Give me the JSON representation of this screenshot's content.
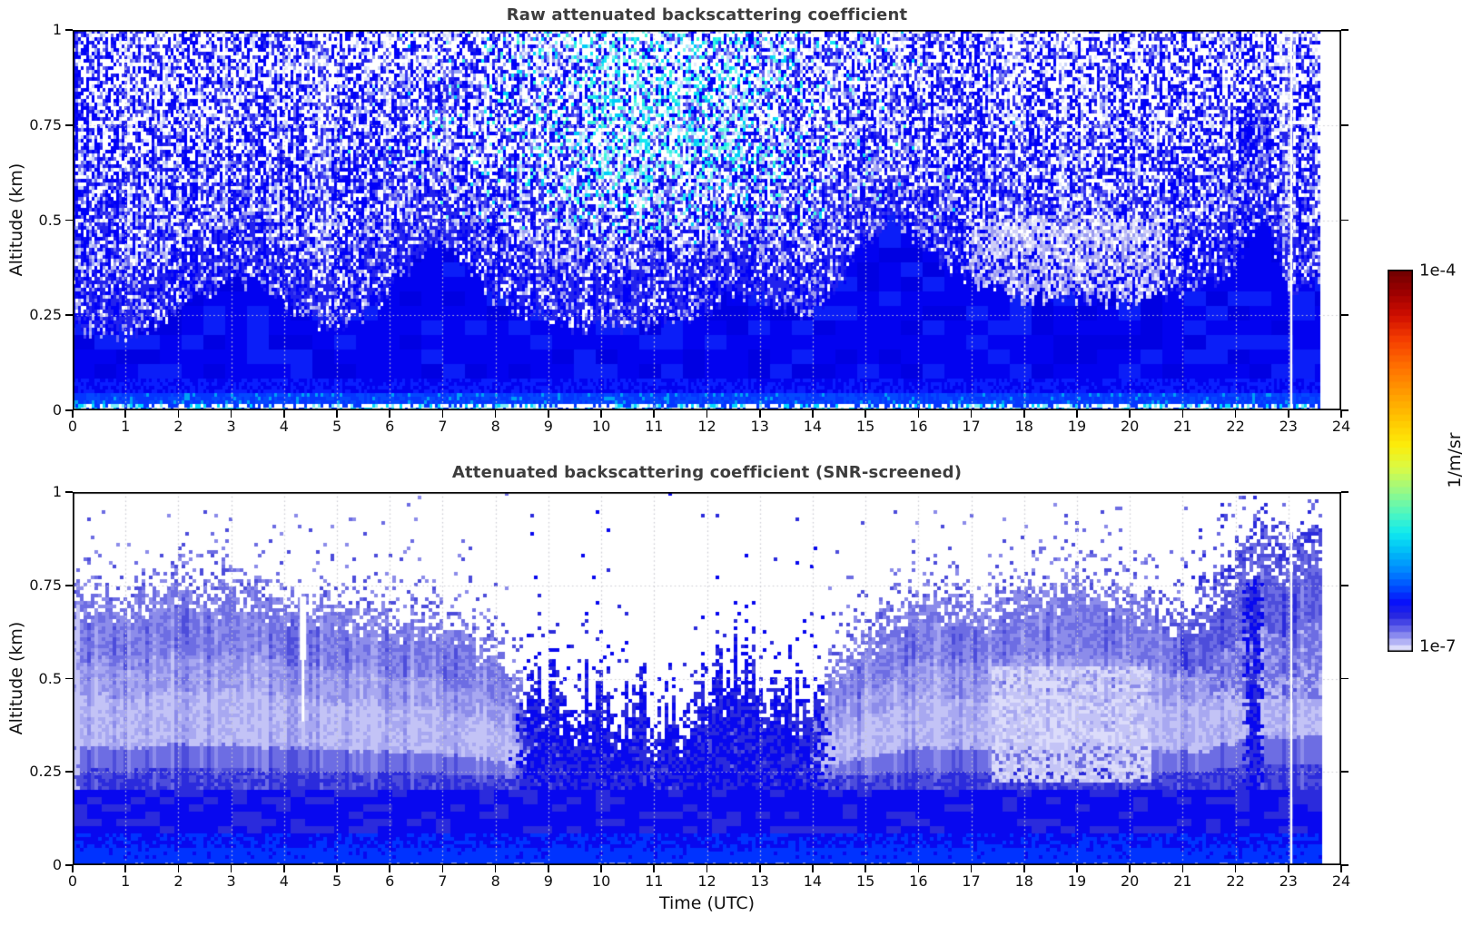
{
  "figure": {
    "background": "#ffffff"
  },
  "colorbar": {
    "max_label": "1e-4",
    "min_label": "1e-7",
    "unit_label": "1/m/sr",
    "scale": "log",
    "vmin": 1e-07,
    "vmax": 0.0001,
    "stops": [
      [
        0.0,
        "#6e0000"
      ],
      [
        0.06,
        "#9d0000"
      ],
      [
        0.12,
        "#cf0e00"
      ],
      [
        0.18,
        "#f43b00"
      ],
      [
        0.25,
        "#ff6d00"
      ],
      [
        0.32,
        "#ff9a00"
      ],
      [
        0.39,
        "#ffc400"
      ],
      [
        0.46,
        "#fced0a"
      ],
      [
        0.52,
        "#d9fa46"
      ],
      [
        0.58,
        "#97f986"
      ],
      [
        0.64,
        "#4cf7c2"
      ],
      [
        0.69,
        "#0fe9ef"
      ],
      [
        0.74,
        "#00baf8"
      ],
      [
        0.79,
        "#0084ff"
      ],
      [
        0.83,
        "#004eff"
      ],
      [
        0.87,
        "#0711fa"
      ],
      [
        0.905,
        "#2727e2"
      ],
      [
        0.93,
        "#5050e6"
      ],
      [
        0.955,
        "#8484ee"
      ],
      [
        0.975,
        "#b4b4f5"
      ],
      [
        0.99,
        "#dadafb"
      ],
      [
        1.0,
        "#ececfe"
      ]
    ],
    "n_steps": 58
  },
  "chart_data": [
    {
      "type": "heatmap",
      "title": "Raw attenuated backscattering coefficient",
      "xlabel": "",
      "ylabel": "Altitude (km)",
      "xlim": [
        0,
        24
      ],
      "ylim": [
        0,
        1
      ],
      "xticks": [
        0,
        1,
        2,
        3,
        4,
        5,
        6,
        7,
        8,
        9,
        10,
        11,
        12,
        13,
        14,
        15,
        16,
        17,
        18,
        19,
        20,
        21,
        22,
        23,
        24
      ],
      "yticks": [
        0,
        0.25,
        0.5,
        0.75,
        1
      ],
      "yticklabels": [
        "0",
        "0.25",
        "0.5",
        "0.75",
        "1"
      ],
      "grid": true,
      "data_end_hour": 23.6,
      "gap_hour": 23.05,
      "solid_layer_top_km": {
        "hours": [
          0,
          0.5,
          1,
          1.5,
          2,
          2.5,
          3,
          3.5,
          4,
          4.5,
          5,
          5.5,
          6,
          6.5,
          7,
          7.5,
          8,
          8.5,
          9,
          9.5,
          10,
          10.5,
          11,
          11.5,
          12,
          12.5,
          13,
          13.5,
          14,
          14.5,
          15,
          15.5,
          16,
          16.5,
          17,
          17.5,
          18,
          18.5,
          19,
          19.5,
          20,
          20.5,
          21,
          21.5,
          22,
          22.5,
          23,
          23.6
        ],
        "values": [
          0.21,
          0.2,
          0.2,
          0.22,
          0.26,
          0.3,
          0.33,
          0.34,
          0.28,
          0.24,
          0.22,
          0.25,
          0.31,
          0.39,
          0.45,
          0.37,
          0.29,
          0.26,
          0.24,
          0.22,
          0.22,
          0.22,
          0.23,
          0.24,
          0.26,
          0.3,
          0.3,
          0.27,
          0.26,
          0.33,
          0.45,
          0.5,
          0.45,
          0.38,
          0.34,
          0.32,
          0.3,
          0.3,
          0.3,
          0.29,
          0.28,
          0.3,
          0.31,
          0.33,
          0.37,
          0.52,
          0.32,
          0.35
        ]
      },
      "cyan_enhancement": {
        "hour_center": 11.1,
        "hour_sigma": 1.9,
        "alt_start": 0.42,
        "alt_ramp": 0.25,
        "max_fraction": 0.5
      },
      "light_patch": {
        "hour_start": 16.9,
        "hour_end": 20.6,
        "alt_min": 0.24,
        "alt_max": 0.5
      },
      "noise_seed": 1337,
      "palette": {
        "blues": [
          "#0000f8",
          "#0e0ef2",
          "#2222ee",
          "#3d3df2",
          "#6868f0",
          "#9aa6f6",
          "#c9d2fa",
          "#e4e9fd"
        ],
        "cyans": [
          "#00cdf8",
          "#14e6f2",
          "#3ef7da",
          "#79f3f0",
          "#a5eefc"
        ],
        "light": [
          "#9a9af0",
          "#b4b4f4",
          "#cecef8",
          "#e6e6fc"
        ],
        "solid_base": "#0202f0",
        "solid_dark": "#0000e2",
        "solid_lite": "#0b1ef8",
        "band": [
          "#0435ff",
          "#0448ff",
          "#00a2f4"
        ],
        "ground": [
          "#ffffff",
          "#00d8ff",
          "#7deef8",
          "#0435ff"
        ]
      }
    },
    {
      "type": "heatmap",
      "title": "Attenuated backscattering coefficient (SNR-screened)",
      "xlabel": "Time (UTC)",
      "ylabel": "Altitude (km)",
      "xlim": [
        0,
        24
      ],
      "ylim": [
        0,
        1
      ],
      "xticks": [
        0,
        1,
        2,
        3,
        4,
        5,
        6,
        7,
        8,
        9,
        10,
        11,
        12,
        13,
        14,
        15,
        16,
        17,
        18,
        19,
        20,
        21,
        22,
        23,
        24
      ],
      "yticks": [
        0,
        0.25,
        0.5,
        0.75,
        1
      ],
      "yticklabels": [
        "0",
        "0.25",
        "0.5",
        "0.75",
        "1"
      ],
      "grid": true,
      "data_end_hour": 23.6,
      "gap_hour": 23.05,
      "notch_hour": 4.35,
      "bl_top_km": {
        "hours": [
          0,
          0.5,
          1,
          1.5,
          2,
          2.5,
          3,
          3.5,
          4,
          4.5,
          5,
          5.5,
          6,
          6.5,
          7,
          7.5,
          8,
          8.5,
          9,
          9.5,
          10,
          10.5,
          11,
          11.5,
          12,
          12.5,
          13,
          13.5,
          14,
          14.5,
          15,
          15.5,
          16,
          16.5,
          17,
          17.5,
          18,
          18.5,
          19,
          19.5,
          20,
          20.5,
          21,
          21.5,
          22,
          22.5,
          23,
          23.6
        ],
        "values": [
          0.74,
          0.72,
          0.7,
          0.72,
          0.76,
          0.74,
          0.75,
          0.73,
          0.72,
          0.7,
          0.7,
          0.69,
          0.68,
          0.66,
          0.64,
          0.61,
          0.57,
          0.48,
          0.43,
          0.4,
          0.38,
          0.36,
          0.35,
          0.37,
          0.42,
          0.48,
          0.45,
          0.42,
          0.42,
          0.55,
          0.62,
          0.66,
          0.72,
          0.7,
          0.7,
          0.71,
          0.73,
          0.74,
          0.76,
          0.74,
          0.72,
          0.7,
          0.68,
          0.7,
          0.78,
          0.86,
          0.82,
          0.86
        ]
      },
      "midday_dense": {
        "start": 8.2,
        "end": 14.5
      },
      "light_patch": {
        "hour_start": 17.4,
        "hour_end": 20.4,
        "alt_min": 0.22,
        "alt_max": 0.53
      },
      "dark_streak": {
        "hour_center": 22.35,
        "hour_sigma": 0.12
      },
      "noise_seed": 424242,
      "palette": {
        "levels": [
          "#ffffff",
          "#efeffd",
          "#dcdcfa",
          "#c3c3f6",
          "#a8a8f1",
          "#8c8cea",
          "#6d6de3",
          "#4d4ddb",
          "#2b2bdc",
          "#0808ef",
          "#0033ff",
          "#0048ff"
        ]
      }
    }
  ]
}
